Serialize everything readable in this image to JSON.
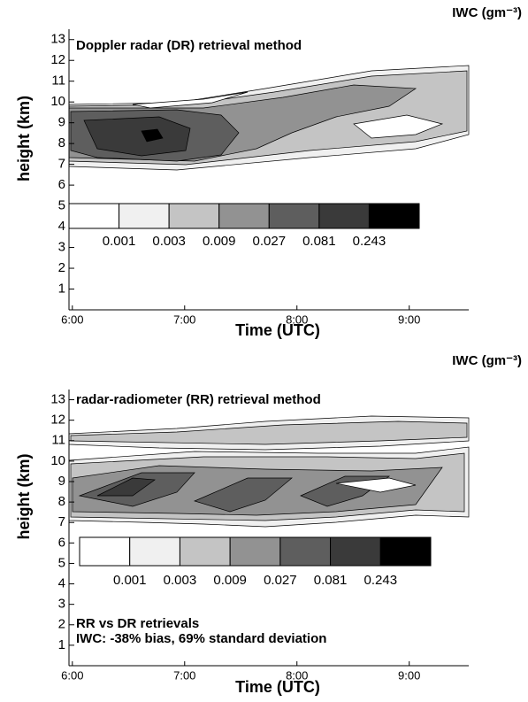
{
  "chart_data": [
    {
      "type": "contour",
      "title": "Doppler radar (DR) retrieval method",
      "colorbar_label": "IWC (gm⁻³)",
      "xlabel": "Time  (UTC)",
      "ylabel": "height (km)",
      "xlim": [
        5.97,
        9.53
      ],
      "xticks": [
        {
          "value": 6,
          "label": "6:00"
        },
        {
          "value": 7,
          "label": "7:00"
        },
        {
          "value": 8,
          "label": "8:00"
        },
        {
          "value": 9,
          "label": "9:00"
        }
      ],
      "ylim": [
        0,
        13.5
      ],
      "yticks": [
        1,
        2,
        3,
        4,
        5,
        6,
        7,
        8,
        9,
        10,
        11,
        12,
        13
      ],
      "colorbar": {
        "values": [
          0.001,
          0.003,
          0.009,
          0.027,
          0.081,
          0.243
        ],
        "colors": [
          "#ffffff",
          "#f0f0f0",
          "#c4c4c4",
          "#929292",
          "#5e5e5e",
          "#3a3a3a",
          "#000000"
        ]
      }
    },
    {
      "type": "contour",
      "title": "radar-radiometer (RR) retrieval method",
      "colorbar_label": "IWC (gm⁻³)",
      "xlabel": "Time (UTC)",
      "ylabel": "height (km)",
      "xlim": [
        5.97,
        9.53
      ],
      "xticks": [
        {
          "value": 6,
          "label": "6:00"
        },
        {
          "value": 7,
          "label": "7:00"
        },
        {
          "value": 8,
          "label": "8:00"
        },
        {
          "value": 9,
          "label": "9:00"
        }
      ],
      "ylim": [
        0,
        13.5
      ],
      "yticks": [
        1,
        2,
        3,
        4,
        5,
        6,
        7,
        8,
        9,
        10,
        11,
        12,
        13
      ],
      "colorbar": {
        "values": [
          0.001,
          0.003,
          0.009,
          0.027,
          0.081,
          0.243
        ],
        "colors": [
          "#ffffff",
          "#f0f0f0",
          "#c4c4c4",
          "#929292",
          "#5e5e5e",
          "#3a3a3a",
          "#000000"
        ]
      },
      "annotations": [
        "RR vs DR retrievals",
        "IWC:  -38% bias, 69% standard deviation"
      ]
    }
  ]
}
